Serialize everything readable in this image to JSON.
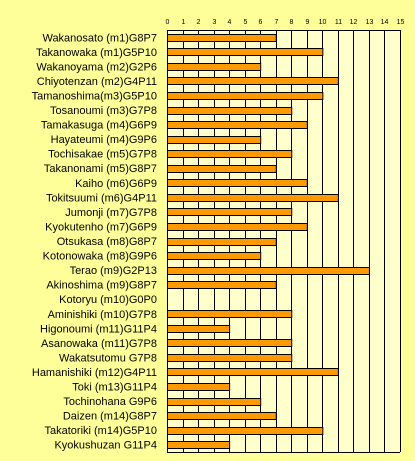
{
  "chart_data": {
    "type": "bar",
    "orientation": "horizontal",
    "title": "",
    "xlabel": "",
    "ylabel": "",
    "xlim": [
      0,
      15
    ],
    "x_ticks": [
      0,
      1,
      2,
      3,
      4,
      5,
      6,
      7,
      8,
      9,
      10,
      11,
      12,
      13,
      14,
      15
    ],
    "grid": "vertical",
    "colors": {
      "background": "#ffff99",
      "plot_background": "#ffffcc",
      "bar": "#ff9900",
      "bar_border": "#000000",
      "grid": "#000000"
    },
    "categories": [
      "Wakanosato (m1)G8P7",
      "Takanowaka (m1)G5P10",
      "Wakanoyama (m2)G2P6",
      "Chiyotenzan (m2)G4P11",
      "Tamanoshima(m3)G5P10",
      "Tosanoumi (m3)G7P8",
      "Tamakasuga (m4)G6P9",
      "Hayateumi (m4)G9P6",
      "Tochisakae (m5)G7P8",
      "Takanonami (m5)G8P7",
      "Kaiho (m6)G6P9",
      "Tokitsuumi (m6)G4P11",
      "Jumonji (m7)G7P8",
      "Kyokutenho (m7)G6P9",
      "Otsukasa (m8)G8P7",
      "Kotonowaka (m8)G9P6",
      "Terao (m9)G2P13",
      "Akinoshima (m9)G8P7",
      "Kotoryu (m10)G0P0",
      "Aminishiki (m10)G7P8",
      "Higonoumi (m11)G11P4",
      "Asanowaka (m11)G7P8",
      "Wakatsutomu G7P8",
      "Hamanishiki (m12)G4P11",
      "Toki (m13)G11P4",
      "Tochinohana G9P6",
      "Daizen (m14)G8P7",
      "Takatoriki (m14)G5P10",
      "Kyokushuzan G11P4"
    ],
    "values": [
      7,
      10,
      6,
      11,
      10,
      8,
      9,
      6,
      8,
      7,
      9,
      11,
      8,
      9,
      7,
      6,
      13,
      7,
      0,
      8,
      4,
      8,
      8,
      11,
      4,
      6,
      7,
      10,
      4
    ]
  }
}
